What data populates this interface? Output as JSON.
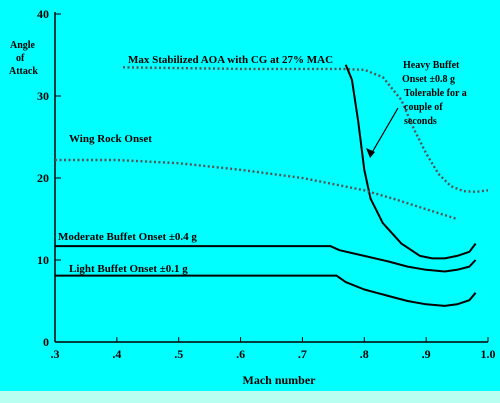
{
  "chart_data": {
    "type": "line",
    "xlabel": "Mach number",
    "ylabel": "Angle of Attack",
    "xlim": [
      0.3,
      1.0
    ],
    "ylim": [
      0,
      40
    ],
    "x_ticks": [
      ".3",
      ".4",
      ".5",
      ".6",
      ".7",
      ".8",
      ".9",
      "1.0"
    ],
    "y_ticks": [
      "0",
      "10",
      "20",
      "30",
      "40"
    ],
    "grid": false,
    "colors": {
      "background": "#00ffff",
      "line": "#000000",
      "dotted_line": "#555555",
      "bottom_bar": "#b8fff2"
    },
    "series": [
      {
        "name": "Max Stabilized AOA with CG at 27% MAC",
        "style": "dotted",
        "x": [
          0.41,
          0.5,
          0.6,
          0.7,
          0.76,
          0.8,
          0.83,
          0.86,
          0.88,
          0.9,
          0.92,
          0.94,
          0.96,
          0.98,
          1.0
        ],
        "y": [
          33.5,
          33.4,
          33.3,
          33.3,
          33.3,
          33.2,
          32.3,
          29.5,
          26.0,
          23.0,
          20.5,
          19.0,
          18.4,
          18.3,
          18.5
        ]
      },
      {
        "name": "Heavy Buffet Onset ±0.8 g",
        "style": "solid",
        "x": [
          0.77,
          0.78,
          0.79,
          0.8,
          0.81,
          0.83,
          0.86,
          0.89,
          0.91,
          0.93,
          0.95,
          0.97,
          0.98
        ],
        "y": [
          33.8,
          32.0,
          27.0,
          21.0,
          17.5,
          14.5,
          12.0,
          10.5,
          10.2,
          10.2,
          10.5,
          11.0,
          12.0
        ]
      },
      {
        "name": "Wing Rock Onset",
        "style": "dotted",
        "x": [
          0.3,
          0.4,
          0.5,
          0.6,
          0.7,
          0.8,
          0.85,
          0.9,
          0.95
        ],
        "y": [
          22.2,
          22.2,
          21.8,
          21.0,
          20.0,
          18.5,
          17.4,
          16.2,
          15.0
        ]
      },
      {
        "name": "Moderate Buffet Onset ±0.4 g",
        "style": "solid",
        "x": [
          0.3,
          0.5,
          0.7,
          0.745,
          0.76,
          0.8,
          0.84,
          0.87,
          0.9,
          0.93,
          0.95,
          0.97,
          0.98
        ],
        "y": [
          11.7,
          11.7,
          11.7,
          11.7,
          11.2,
          10.5,
          9.8,
          9.2,
          8.8,
          8.6,
          8.8,
          9.2,
          10.0
        ]
      },
      {
        "name": "Light Buffet Onset ±0.1 g",
        "style": "solid",
        "x": [
          0.3,
          0.5,
          0.7,
          0.755,
          0.77,
          0.8,
          0.84,
          0.87,
          0.9,
          0.93,
          0.95,
          0.97,
          0.98
        ],
        "y": [
          8.1,
          8.1,
          8.1,
          8.1,
          7.3,
          6.4,
          5.6,
          5.0,
          4.6,
          4.4,
          4.6,
          5.1,
          6.0
        ]
      }
    ],
    "annotations": {
      "max_stab": "Max Stabilized AOA with CG at 27% MAC",
      "heavy_1": "Heavy Buffet",
      "heavy_2": "Onset  ±0.8 g",
      "heavy_3": "Tolerable for a",
      "heavy_4": "couple of",
      "heavy_5": "seconds",
      "wing_rock": "Wing Rock Onset",
      "moderate": "Moderate Buffet Onset ±0.4 g",
      "light": "Light Buffet Onset ±0.1 g",
      "y_title_1": "Angle",
      "y_title_2": "of",
      "y_title_3": "Attack"
    }
  }
}
